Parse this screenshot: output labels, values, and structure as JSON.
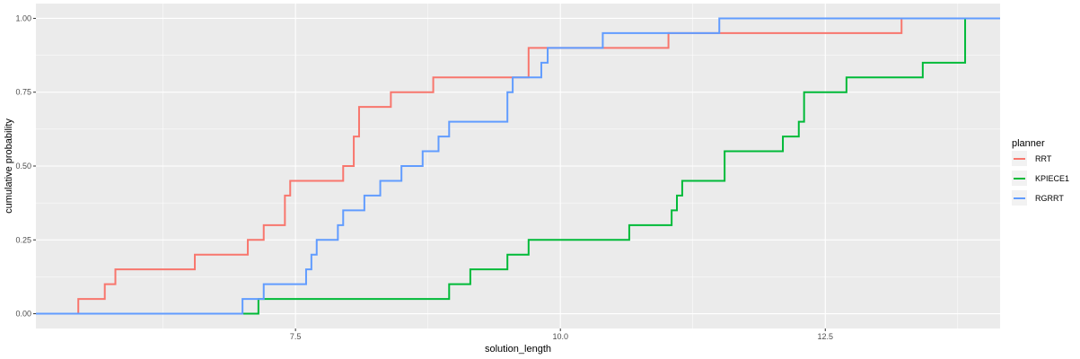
{
  "chart_data": {
    "type": "line",
    "subtype": "ecdf-step",
    "xlabel": "solution_length",
    "ylabel": "cumulative probability",
    "xlim": [
      5.05,
      14.15
    ],
    "ylim": [
      -0.05,
      1.05
    ],
    "xticks": [
      7.5,
      10.0,
      12.5
    ],
    "xtick_labels": [
      "7.5",
      "10.0",
      "12.5"
    ],
    "yticks": [
      0,
      0.25,
      0.5,
      0.75,
      1.0
    ],
    "ytick_labels": [
      "0.00",
      "0.25",
      "0.50",
      "0.75",
      "1.00"
    ],
    "grid": true,
    "legend": {
      "title": "planner",
      "position": "right"
    },
    "series": [
      {
        "name": "RRT",
        "color": "#F8766D",
        "x": [
          5.45,
          5.7,
          5.8,
          6.55,
          7.05,
          7.2,
          7.4,
          7.45,
          7.95,
          8.05,
          8.1,
          8.4,
          8.8,
          9.7,
          11.02,
          13.22
        ],
        "y": [
          0.05,
          0.1,
          0.15,
          0.2,
          0.25,
          0.3,
          0.4,
          0.45,
          0.5,
          0.6,
          0.7,
          0.75,
          0.8,
          0.9,
          0.95,
          1.0
        ]
      },
      {
        "name": "KPIECE1",
        "color": "#00BA38",
        "x": [
          7.15,
          8.95,
          9.15,
          9.5,
          9.7,
          10.65,
          11.05,
          11.1,
          11.15,
          11.55,
          12.1,
          12.25,
          12.3,
          12.7,
          13.42,
          13.82
        ],
        "y": [
          0.05,
          0.1,
          0.15,
          0.2,
          0.25,
          0.3,
          0.35,
          0.4,
          0.45,
          0.55,
          0.6,
          0.65,
          0.75,
          0.8,
          0.85,
          1.0
        ]
      },
      {
        "name": "RGRRT",
        "color": "#619CFF",
        "x": [
          7.0,
          7.2,
          7.6,
          7.65,
          7.7,
          7.9,
          7.95,
          8.15,
          8.3,
          8.5,
          8.7,
          8.85,
          8.95,
          9.5,
          9.55,
          9.82,
          9.88,
          10.4,
          11.5
        ],
        "y": [
          0.05,
          0.1,
          0.15,
          0.2,
          0.25,
          0.3,
          0.35,
          0.4,
          0.45,
          0.5,
          0.55,
          0.6,
          0.65,
          0.75,
          0.8,
          0.85,
          0.9,
          0.95,
          1.0
        ]
      }
    ]
  }
}
